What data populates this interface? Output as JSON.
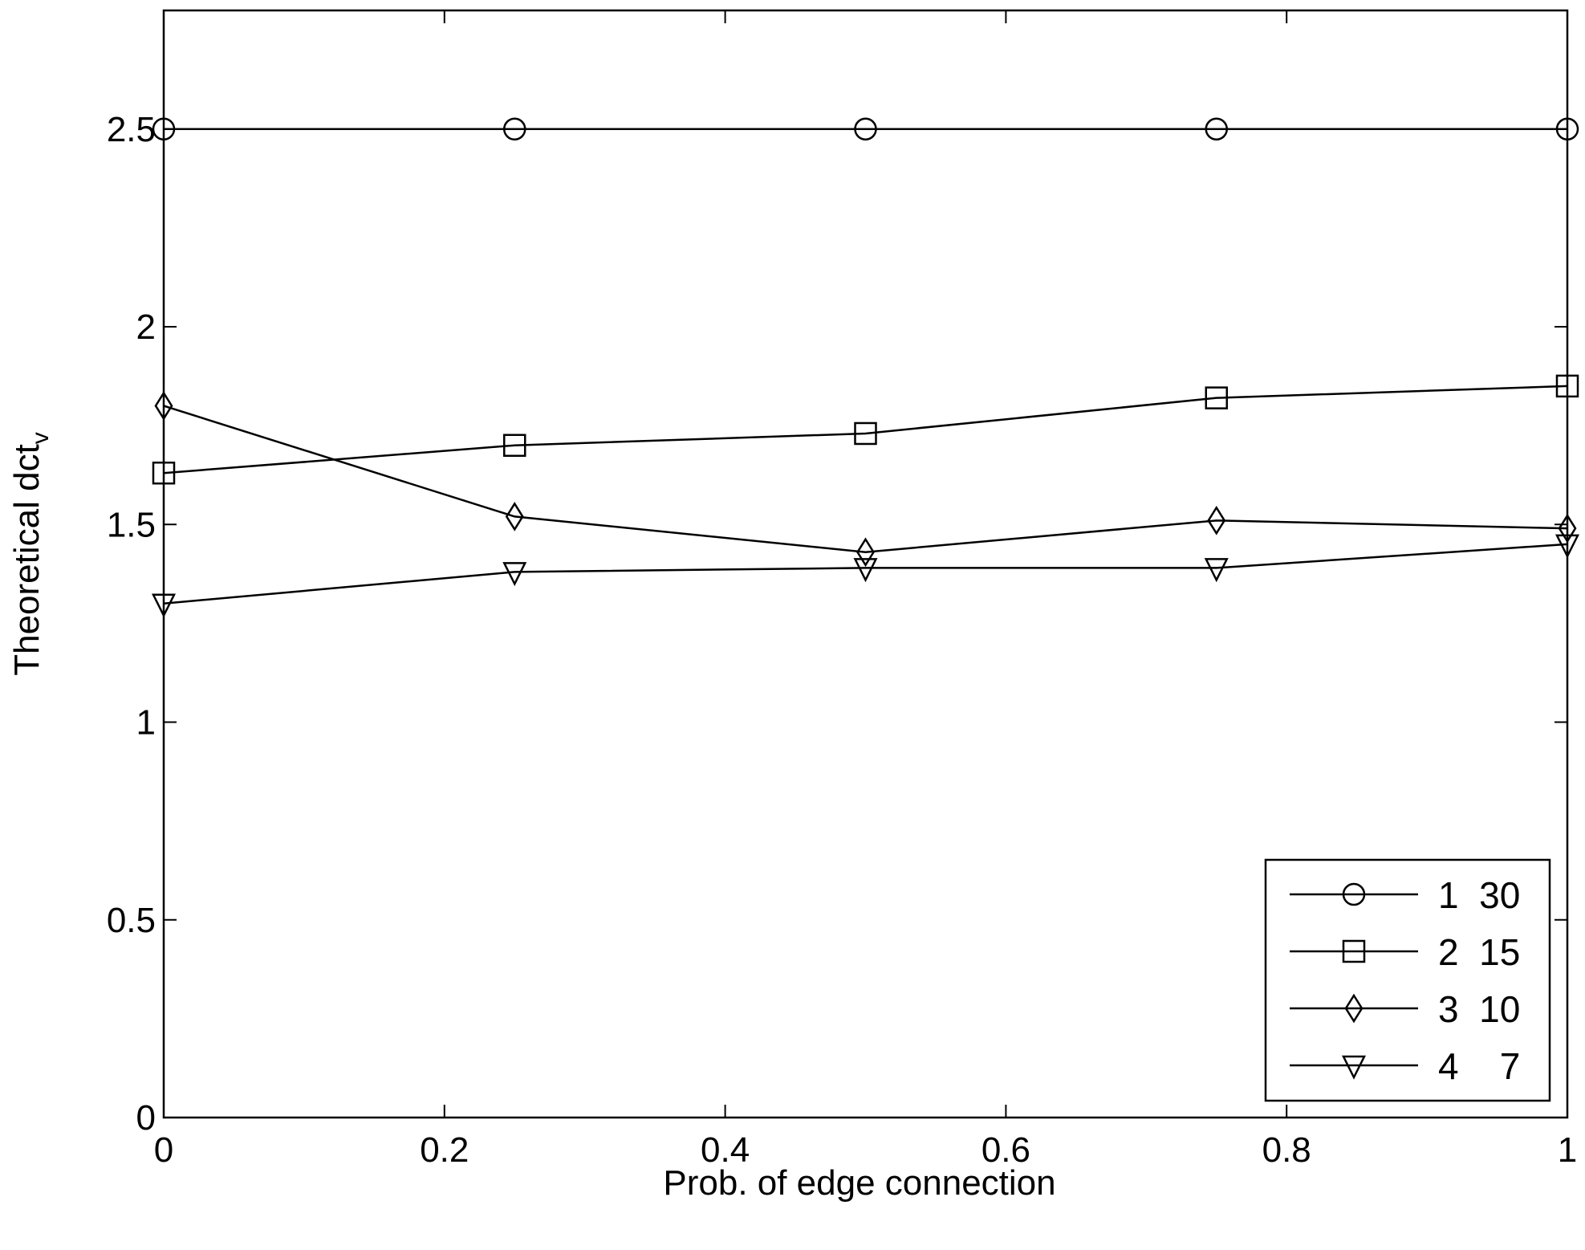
{
  "chart_data": {
    "type": "line",
    "title": "",
    "xlabel": "Prob. of edge connection",
    "ylabel": "Theoretical dct",
    "ylabel_subscript": "v",
    "xlim": [
      0,
      1
    ],
    "ylim": [
      0,
      2.8
    ],
    "x_ticks": [
      0,
      0.2,
      0.4,
      0.6,
      0.8,
      1
    ],
    "x_tick_labels": [
      "0",
      "0.2",
      "0.4",
      "0.6",
      "0.8",
      "1"
    ],
    "y_ticks": [
      0,
      0.5,
      1,
      1.5,
      2,
      2.5
    ],
    "y_tick_labels": [
      "0",
      "0.5",
      "1",
      "1.5",
      "2",
      "2.5"
    ],
    "grid": false,
    "legend_position": "bottom-right",
    "x": [
      0,
      0.25,
      0.5,
      0.75,
      1
    ],
    "series": [
      {
        "name": "1  30",
        "marker": "circle",
        "values": [
          2.5,
          2.5,
          2.5,
          2.5,
          2.5
        ]
      },
      {
        "name": "2  15",
        "marker": "square",
        "values": [
          1.63,
          1.7,
          1.73,
          1.82,
          1.85
        ]
      },
      {
        "name": "3  10",
        "marker": "diamond",
        "values": [
          1.8,
          1.52,
          1.43,
          1.51,
          1.49
        ]
      },
      {
        "name": "4    7",
        "marker": "triangle-down",
        "values": [
          1.3,
          1.38,
          1.39,
          1.39,
          1.45
        ]
      }
    ],
    "colors": {
      "line": "#000000",
      "background": "#ffffff"
    }
  }
}
